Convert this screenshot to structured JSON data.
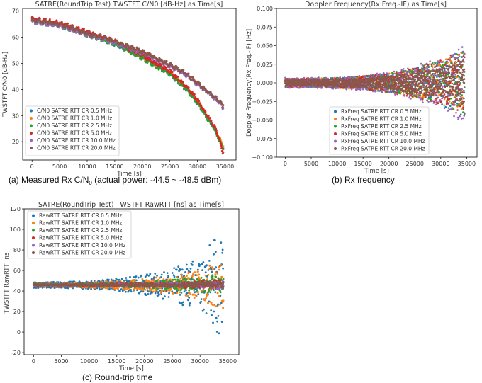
{
  "colors": [
    "#1f77b4",
    "#ff7f0e",
    "#2ca02c",
    "#d62728",
    "#9467bd",
    "#8c564b"
  ],
  "captions": {
    "a_main": "(a) Measured Rx C/N",
    "a_sub": "0",
    "a_rest": " (actual power: -44.5 ~ -48.5 dBm)",
    "b": "(b) Rx frequency",
    "c": "(c) Round-trip time"
  },
  "chart_data": [
    {
      "id": "cn0",
      "type": "scatter",
      "title": "SATRE(RoundTrip Test) TWSTFT C/N0 [dB-Hz] as Time[s]",
      "xlabel": "Time [s]",
      "ylabel": "TWSTFT C/N0 [dB-Hz]",
      "xlim": [
        -1700,
        37000
      ],
      "ylim": [
        13,
        71
      ],
      "xticks": [
        0,
        5000,
        10000,
        15000,
        20000,
        25000,
        30000,
        35000
      ],
      "yticks": [
        20,
        30,
        40,
        50,
        60,
        70
      ],
      "legend_position": "lower-left",
      "series": [
        {
          "name": "C/N0 SATRE RTT CR 0.5 MHz",
          "x": [
            0,
            5000,
            10000,
            15000,
            20000,
            25000,
            28000,
            30000,
            31500,
            33000,
            34000,
            34500
          ],
          "y": [
            66,
            64.5,
            61,
            57.5,
            52,
            46,
            40,
            35,
            30,
            25,
            21,
            18
          ]
        },
        {
          "name": "C/N0 SATRE RTT CR 1.0 MHz",
          "x": [
            0,
            5000,
            10000,
            15000,
            20000,
            25000,
            28000,
            30000,
            31500,
            33000,
            34000,
            34500
          ],
          "y": [
            66.5,
            65,
            61.5,
            58,
            52.5,
            46.5,
            40.5,
            35.5,
            30.5,
            25.5,
            21.5,
            18.5
          ]
        },
        {
          "name": "C/N0 SATRE RTT CR 2.5 MHz",
          "x": [
            0,
            5000,
            10000,
            15000,
            20000,
            25000,
            28000,
            30000,
            31500,
            33000,
            34000,
            34500
          ],
          "y": [
            66,
            64.5,
            61,
            57.5,
            52,
            46,
            40,
            35,
            30,
            25,
            20.5,
            17.5
          ]
        },
        {
          "name": "C/N0 SATRE RTT CR 5.0 MHz",
          "x": [
            0,
            5000,
            10000,
            15000,
            20000,
            25000,
            28000,
            30000,
            31500,
            33000,
            34000,
            34500
          ],
          "y": [
            67,
            65.5,
            62,
            58.5,
            53,
            47,
            41,
            36,
            31,
            26,
            21,
            16
          ]
        },
        {
          "name": "C/N0 SATRE RTT CR 10.0 MHz",
          "x": [
            0,
            5000,
            10000,
            15000,
            20000,
            25000,
            28000,
            30000,
            32000,
            34000,
            34500
          ],
          "y": [
            66,
            64.5,
            61,
            58,
            54,
            49,
            45.5,
            42,
            38.5,
            35,
            33
          ]
        },
        {
          "name": "C/N0 SATRE RTT CR 20.0 MHz",
          "x": [
            0,
            5000,
            10000,
            15000,
            20000,
            25000,
            28000,
            30000,
            32000,
            34000,
            34500
          ],
          "y": [
            66.5,
            65,
            61.5,
            58.5,
            54.5,
            49.5,
            46,
            42.5,
            39,
            35.5,
            34
          ]
        }
      ]
    },
    {
      "id": "freq",
      "type": "scatter",
      "title": "Doppler Frequency(Rx Freq.-IF) as Time[s]",
      "xlabel": "Time [s]",
      "ylabel": "Doppler Frequency(Rx Freq.-IF) [Hz]",
      "xlim": [
        -1700,
        37000
      ],
      "ylim": [
        -0.1,
        0.1
      ],
      "xticks": [
        0,
        5000,
        10000,
        15000,
        20000,
        25000,
        30000,
        35000
      ],
      "yticks": [
        -0.1,
        -0.075,
        -0.05,
        -0.025,
        0,
        0.025,
        0.05,
        0.075,
        0.1
      ],
      "yticklabels": [
        "−0.100",
        "−0.075",
        "−0.050",
        "−0.025",
        "0.000",
        "0.025",
        "0.050",
        "0.075",
        "0.100"
      ],
      "legend_position": "lower-right",
      "center": 0,
      "envelope": {
        "x": [
          0,
          5000,
          10000,
          15000,
          20000,
          25000,
          30000,
          34000
        ],
        "half_width": [
          0.006,
          0.006,
          0.007,
          0.009,
          0.013,
          0.02,
          0.03,
          0.045
        ]
      },
      "series": [
        {
          "name": "RxFreq SATRE RTT CR 0.5 MHz"
        },
        {
          "name": "RxFreq SATRE RTT CR 1.0 MHz"
        },
        {
          "name": "RxFreq SATRE RTT CR 2.5 MHz"
        },
        {
          "name": "RxFreq SATRE RTT CR 5.0 MHz"
        },
        {
          "name": "RxFreq SATRE RTT CR 10.0 MHz"
        },
        {
          "name": "RxFreq SATRE RTT CR 20.0 MHz"
        }
      ]
    },
    {
      "id": "rtt",
      "type": "scatter",
      "title": "SATRE(RoundTrip Test) TWSTFT RawRTT [ns] as Time[s]",
      "xlabel": "Time [s]",
      "ylabel": "TWSTFT RawRTT [ns]",
      "xlim": [
        -1700,
        37000
      ],
      "ylim": [
        -22,
        120
      ],
      "xticks": [
        0,
        5000,
        10000,
        15000,
        20000,
        25000,
        30000,
        35000
      ],
      "yticks": [
        -20,
        0,
        20,
        40,
        60,
        80,
        100,
        120
      ],
      "legend_position": "upper-left",
      "center": 46,
      "series": [
        {
          "name": "RawRTT SATRE RTT CR 0.5 MHz",
          "x": [
            0,
            5000,
            10000,
            15000,
            20000,
            25000,
            30000,
            34000
          ],
          "half_width": [
            3,
            3,
            4,
            6,
            10,
            16,
            28,
            55
          ]
        },
        {
          "name": "RawRTT SATRE RTT CR 1.0 MHz",
          "x": [
            0,
            5000,
            10000,
            15000,
            20000,
            25000,
            30000,
            34000
          ],
          "half_width": [
            2,
            2,
            3,
            4,
            6,
            9,
            15,
            25
          ]
        },
        {
          "name": "RawRTT SATRE RTT CR 2.5 MHz",
          "x": [
            0,
            5000,
            10000,
            15000,
            20000,
            25000,
            30000,
            34000
          ],
          "half_width": [
            1.5,
            1.5,
            2,
            2.5,
            3,
            5,
            7,
            10
          ]
        },
        {
          "name": "RawRTT SATRE RTT CR 5.0 MHz",
          "x": [
            0,
            5000,
            10000,
            15000,
            20000,
            25000,
            30000,
            34000
          ],
          "half_width": [
            1,
            1,
            1.2,
            1.5,
            2,
            2.5,
            3.5,
            5
          ]
        },
        {
          "name": "RawRTT SATRE RTT CR 10.0 MHz",
          "x": [
            0,
            5000,
            10000,
            15000,
            20000,
            25000,
            30000,
            34000
          ],
          "half_width": [
            0.8,
            0.8,
            1,
            1.2,
            1.5,
            2,
            3,
            4
          ]
        },
        {
          "name": "RawRTT SATRE RTT CR 20.0 MHz",
          "x": [
            0,
            5000,
            10000,
            15000,
            20000,
            25000,
            30000,
            34000
          ],
          "half_width": [
            0.6,
            0.6,
            0.8,
            1,
            1.2,
            1.6,
            2.2,
            3
          ]
        }
      ]
    }
  ]
}
